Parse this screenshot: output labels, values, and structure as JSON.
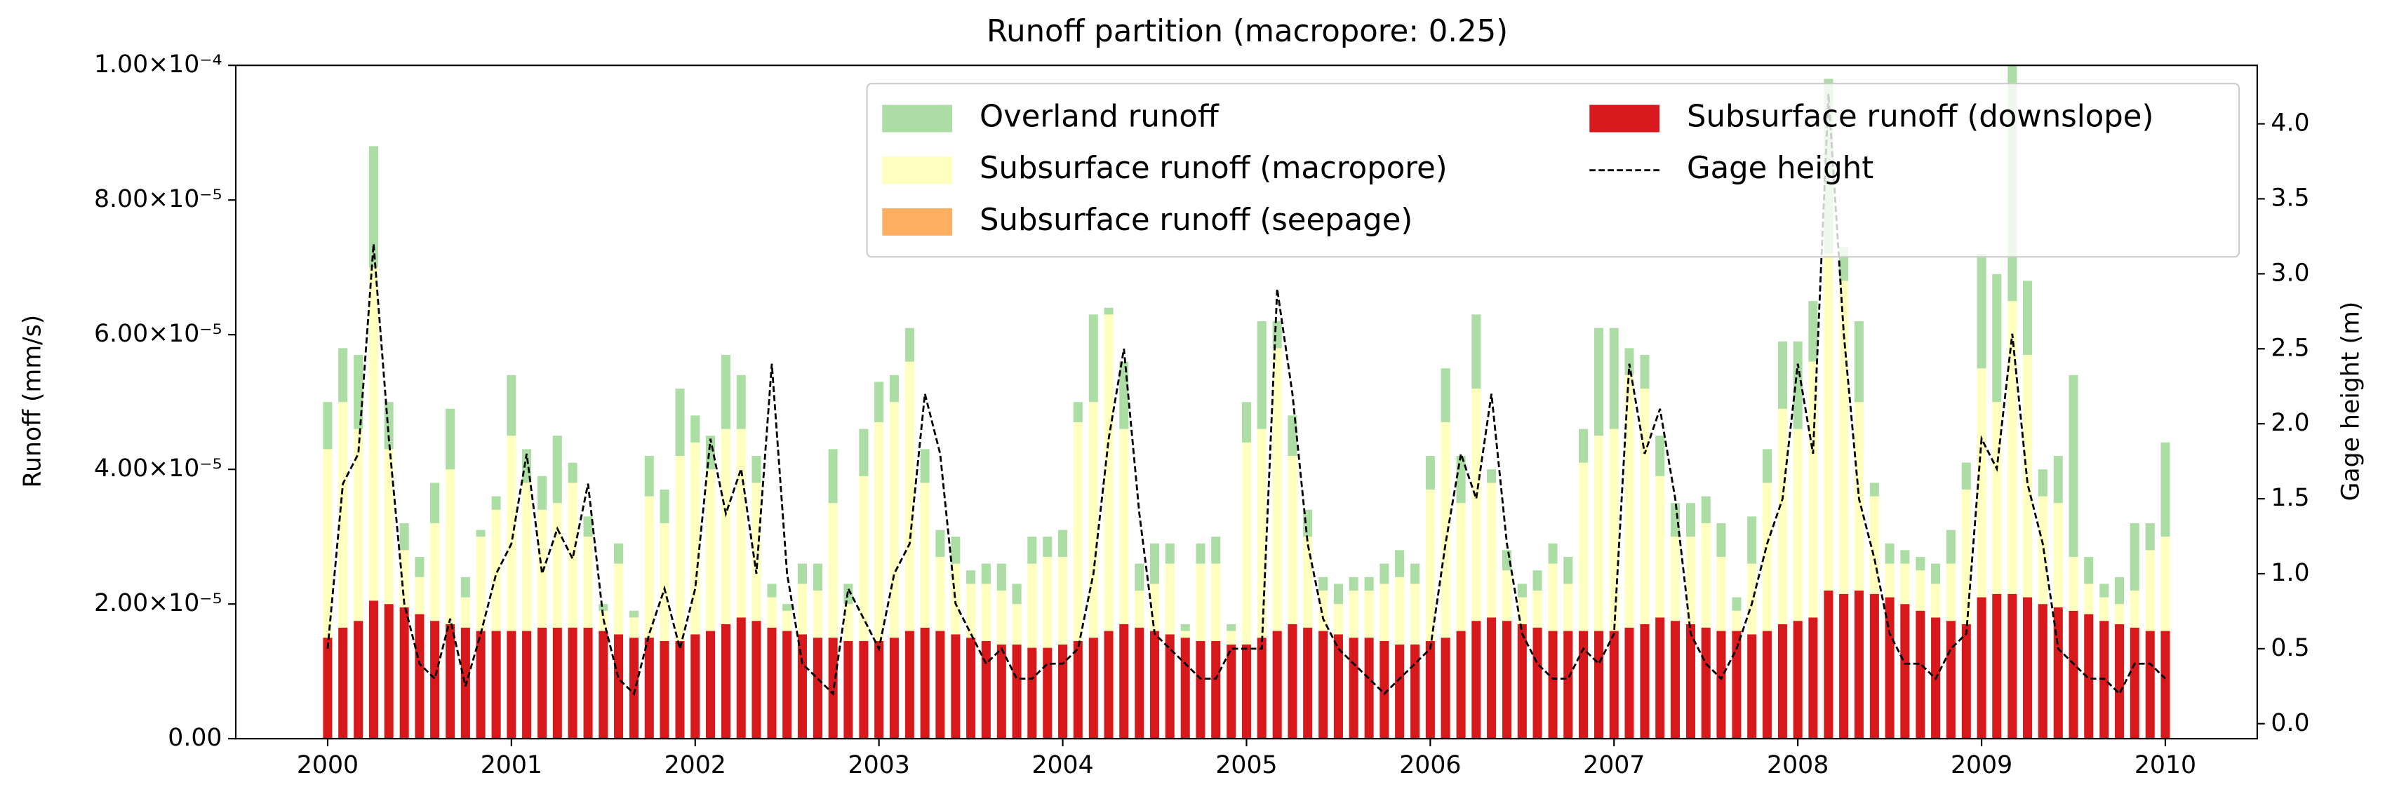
{
  "chart_data": {
    "type": "stacked_bar_line",
    "title": "Runoff partition (macropore: 0.25)",
    "y_label": "Runoff (mm/s)",
    "y2_label": "Gage height (m)",
    "legend": "upper right",
    "xlim": [
      1999.5,
      2010.5
    ],
    "xticks": [
      2000,
      2001,
      2002,
      2003,
      2004,
      2005,
      2006,
      2007,
      2008,
      2009,
      2010
    ],
    "ylim": [
      0,
      0.0001
    ],
    "yticks": [
      {
        "value": 0,
        "label": "0.00"
      },
      {
        "value": 2e-05,
        "label": "2.00×10⁻⁵"
      },
      {
        "value": 4e-05,
        "label": "4.00×10⁻⁵"
      },
      {
        "value": 6e-05,
        "label": "6.00×10⁻⁵"
      },
      {
        "value": 8e-05,
        "label": "8.00×10⁻⁵"
      },
      {
        "value": 0.0001,
        "label": "1.00×10⁻⁴"
      }
    ],
    "y2lim": [
      -0.1,
      4.39
    ],
    "y2ticks": [
      {
        "value": 0,
        "label": "0.0"
      },
      {
        "value": 0.5,
        "label": "0.5"
      },
      {
        "value": 1,
        "label": "1.0"
      },
      {
        "value": 1.5,
        "label": "1.5"
      },
      {
        "value": 2,
        "label": "2.0"
      },
      {
        "value": 2.5,
        "label": "2.5"
      },
      {
        "value": 3,
        "label": "3.0"
      },
      {
        "value": 3.5,
        "label": "3.5"
      },
      {
        "value": 4,
        "label": "4.0"
      }
    ],
    "x": [
      2000,
      2000.083,
      2000.167,
      2000.25,
      2000.333,
      2000.417,
      2000.5,
      2000.583,
      2000.667,
      2000.75,
      2000.833,
      2000.917,
      2001,
      2001.083,
      2001.167,
      2001.25,
      2001.333,
      2001.417,
      2001.5,
      2001.583,
      2001.667,
      2001.75,
      2001.833,
      2001.917,
      2002,
      2002.083,
      2002.167,
      2002.25,
      2002.333,
      2002.417,
      2002.5,
      2002.583,
      2002.667,
      2002.75,
      2002.833,
      2002.917,
      2003,
      2003.083,
      2003.167,
      2003.25,
      2003.333,
      2003.417,
      2003.5,
      2003.583,
      2003.667,
      2003.75,
      2003.833,
      2003.917,
      2004,
      2004.083,
      2004.167,
      2004.25,
      2004.333,
      2004.417,
      2004.5,
      2004.583,
      2004.667,
      2004.75,
      2004.833,
      2004.917,
      2005,
      2005.083,
      2005.167,
      2005.25,
      2005.333,
      2005.417,
      2005.5,
      2005.583,
      2005.667,
      2005.75,
      2005.833,
      2005.917,
      2006,
      2006.083,
      2006.167,
      2006.25,
      2006.333,
      2006.417,
      2006.5,
      2006.583,
      2006.667,
      2006.75,
      2006.833,
      2006.917,
      2007,
      2007.083,
      2007.167,
      2007.25,
      2007.333,
      2007.417,
      2007.5,
      2007.583,
      2007.667,
      2007.75,
      2007.833,
      2007.917,
      2008,
      2008.083,
      2008.167,
      2008.25,
      2008.333,
      2008.417,
      2008.5,
      2008.583,
      2008.667,
      2008.75,
      2008.833,
      2008.917,
      2009,
      2009.083,
      2009.167,
      2009.25,
      2009.333,
      2009.417,
      2009.5,
      2009.583,
      2009.667,
      2009.75,
      2009.833,
      2009.917,
      2010
    ],
    "series": [
      {
        "name": "Overland runoff",
        "color": "#abdda4",
        "kind": "bar",
        "values": [
          7e-06,
          8e-06,
          1.1e-05,
          1.8e-05,
          7e-06,
          4e-06,
          3e-06,
          6e-06,
          9e-06,
          3e-06,
          1e-06,
          2e-06,
          9e-06,
          5e-06,
          5e-06,
          1e-05,
          3e-06,
          3e-06,
          1e-06,
          3e-06,
          1e-06,
          6e-06,
          5e-06,
          1e-05,
          4e-06,
          5e-06,
          1.1e-05,
          8e-06,
          4e-06,
          2e-06,
          1e-06,
          3e-06,
          4e-06,
          8e-06,
          3e-06,
          7e-06,
          6e-06,
          4e-06,
          5e-06,
          5e-06,
          4e-06,
          4e-06,
          2e-06,
          3e-06,
          4e-06,
          3e-06,
          4e-06,
          3e-06,
          4e-06,
          3e-06,
          1.3e-05,
          1e-06,
          1e-05,
          4e-06,
          6e-06,
          3e-06,
          1e-06,
          3e-06,
          4e-06,
          1e-06,
          6e-06,
          1.6e-05,
          4e-06,
          6e-06,
          4e-06,
          2e-06,
          3e-06,
          2e-06,
          2e-06,
          3e-06,
          4e-06,
          3e-06,
          5e-06,
          8e-06,
          7e-06,
          1.1e-05,
          2e-06,
          3e-06,
          2e-06,
          3e-06,
          3e-06,
          4e-06,
          5e-06,
          1.6e-05,
          1.5e-05,
          4e-06,
          5e-06,
          6e-06,
          5e-06,
          5e-06,
          4e-06,
          5e-06,
          2e-06,
          7e-06,
          5e-06,
          1e-05,
          1.3e-05,
          9e-06,
          2.6e-05,
          5e-06,
          1.2e-05,
          2e-06,
          3e-06,
          2e-06,
          2e-06,
          3e-06,
          5e-06,
          4e-06,
          1.7e-05,
          1.9e-05,
          3.5e-05,
          1.1e-05,
          4e-06,
          7e-06,
          2.7e-05,
          4e-06,
          2e-06,
          4e-06,
          1e-05,
          4e-06,
          1.4e-05
        ]
      },
      {
        "name": "Subsurface runoff (macropore)",
        "color": "#ffffbf",
        "kind": "bar",
        "values": [
          2.8e-05,
          3.35e-05,
          2.85e-05,
          4.95e-05,
          2.3e-05,
          8.5e-06,
          5.5e-06,
          1.45e-05,
          2.3e-05,
          4.5e-06,
          1.4e-05,
          1.8e-05,
          2.9e-05,
          2.2e-05,
          1.75e-05,
          1.85e-05,
          2.15e-05,
          1.35e-05,
          3e-06,
          1.05e-05,
          3e-06,
          2.1e-05,
          1.75e-05,
          2.75e-05,
          2.85e-05,
          2.4e-05,
          2.9e-05,
          2.8e-05,
          2.05e-05,
          4.5e-06,
          3e-06,
          7.5e-06,
          7e-06,
          2e-05,
          5.5e-06,
          2.45e-05,
          3.25e-05,
          3.5e-05,
          4e-05,
          2.15e-05,
          1.1e-05,
          1.05e-05,
          8e-06,
          8.5e-06,
          8e-06,
          6e-06,
          1.25e-05,
          1.35e-05,
          1.3e-05,
          3.25e-05,
          3.5e-05,
          4.7e-05,
          2.9e-05,
          5.5e-06,
          7e-06,
          1.05e-05,
          1e-06,
          1.15e-05,
          1.15e-05,
          2e-06,
          3e-05,
          3.1e-05,
          4.2e-05,
          2.5e-05,
          1.35e-05,
          6e-06,
          4.5e-06,
          7e-06,
          7e-06,
          8.5e-06,
          1e-05,
          9e-06,
          2.25e-05,
          3.2e-05,
          1.9e-05,
          3.45e-05,
          2e-05,
          7.5e-06,
          4e-06,
          5.5e-06,
          1e-05,
          7e-06,
          2.5e-05,
          2.9e-05,
          3e-05,
          3.75e-05,
          3.5e-05,
          2.1e-05,
          1.25e-05,
          1.3e-05,
          1.55e-05,
          1.1e-05,
          3e-06,
          1.05e-05,
          2.2e-05,
          3.2e-05,
          2.85e-05,
          3.8e-05,
          5e-05,
          4.65e-05,
          2.8e-05,
          1.45e-05,
          5e-06,
          6e-06,
          6e-06,
          5e-06,
          8.5e-06,
          2e-05,
          3.4e-05,
          2.85e-05,
          4.35e-05,
          3.6e-05,
          1.6e-05,
          1.55e-05,
          8e-06,
          4.5e-06,
          3.5e-06,
          3e-06,
          5.5e-06,
          1.2e-05,
          1.4e-05
        ]
      },
      {
        "name": "Subsurface runoff (seepage)",
        "color": "#fdae61",
        "kind": "bar",
        "values": [
          0,
          0,
          0,
          0,
          0,
          0,
          0,
          0,
          0,
          0,
          0,
          0,
          0,
          0,
          0,
          0,
          0,
          0,
          0,
          0,
          0,
          0,
          0,
          0,
          0,
          0,
          0,
          0,
          0,
          0,
          0,
          0,
          0,
          0,
          0,
          0,
          0,
          0,
          0,
          0,
          0,
          0,
          0,
          0,
          0,
          0,
          0,
          0,
          0,
          0,
          0,
          0,
          0,
          0,
          0,
          0,
          0,
          0,
          0,
          0,
          0,
          0,
          0,
          0,
          0,
          0,
          0,
          0,
          0,
          0,
          0,
          0,
          0,
          0,
          0,
          0,
          0,
          0,
          0,
          0,
          0,
          0,
          0,
          0,
          0,
          0,
          0,
          0,
          0,
          0,
          0,
          0,
          0,
          0,
          0,
          0,
          0,
          0,
          0,
          0,
          0,
          0,
          0,
          0,
          0,
          0,
          0,
          0,
          0,
          0,
          0,
          0,
          0,
          0,
          0,
          0,
          0,
          0,
          0,
          0,
          0
        ]
      },
      {
        "name": "Subsurface runoff (downslope)",
        "color": "#d7191c",
        "kind": "bar",
        "values": [
          1.5e-05,
          1.65e-05,
          1.75e-05,
          2.05e-05,
          2e-05,
          1.95e-05,
          1.85e-05,
          1.75e-05,
          1.7e-05,
          1.65e-05,
          1.6e-05,
          1.6e-05,
          1.6e-05,
          1.6e-05,
          1.65e-05,
          1.65e-05,
          1.65e-05,
          1.65e-05,
          1.6e-05,
          1.55e-05,
          1.5e-05,
          1.5e-05,
          1.45e-05,
          1.45e-05,
          1.55e-05,
          1.6e-05,
          1.7e-05,
          1.8e-05,
          1.75e-05,
          1.65e-05,
          1.6e-05,
          1.55e-05,
          1.5e-05,
          1.5e-05,
          1.45e-05,
          1.45e-05,
          1.45e-05,
          1.5e-05,
          1.6e-05,
          1.65e-05,
          1.6e-05,
          1.55e-05,
          1.5e-05,
          1.45e-05,
          1.4e-05,
          1.4e-05,
          1.35e-05,
          1.35e-05,
          1.4e-05,
          1.45e-05,
          1.5e-05,
          1.6e-05,
          1.7e-05,
          1.65e-05,
          1.6e-05,
          1.55e-05,
          1.5e-05,
          1.45e-05,
          1.45e-05,
          1.4e-05,
          1.4e-05,
          1.5e-05,
          1.6e-05,
          1.7e-05,
          1.65e-05,
          1.6e-05,
          1.55e-05,
          1.5e-05,
          1.5e-05,
          1.45e-05,
          1.4e-05,
          1.4e-05,
          1.45e-05,
          1.5e-05,
          1.6e-05,
          1.75e-05,
          1.8e-05,
          1.75e-05,
          1.7e-05,
          1.65e-05,
          1.6e-05,
          1.6e-05,
          1.6e-05,
          1.6e-05,
          1.6e-05,
          1.65e-05,
          1.7e-05,
          1.8e-05,
          1.75e-05,
          1.7e-05,
          1.65e-05,
          1.6e-05,
          1.6e-05,
          1.55e-05,
          1.6e-05,
          1.7e-05,
          1.75e-05,
          1.8e-05,
          2.2e-05,
          2.15e-05,
          2.2e-05,
          2.15e-05,
          2.1e-05,
          2e-05,
          1.9e-05,
          1.8e-05,
          1.75e-05,
          1.7e-05,
          2.1e-05,
          2.15e-05,
          2.15e-05,
          2.1e-05,
          2e-05,
          1.95e-05,
          1.9e-05,
          1.85e-05,
          1.75e-05,
          1.7e-05,
          1.65e-05,
          1.6e-05,
          1.6e-05
        ]
      },
      {
        "name": "Gage height",
        "color": "#000000",
        "kind": "line",
        "axis": "y2",
        "values": [
          0.5,
          1.6,
          1.8,
          3.2,
          1.9,
          0.8,
          0.4,
          0.3,
          0.7,
          0.25,
          0.6,
          1.0,
          1.2,
          1.8,
          1.0,
          1.3,
          1.1,
          1.6,
          0.7,
          0.3,
          0.2,
          0.6,
          0.9,
          0.5,
          0.9,
          1.9,
          1.4,
          1.7,
          1.0,
          2.4,
          1.0,
          0.4,
          0.3,
          0.2,
          0.9,
          0.7,
          0.5,
          1.0,
          1.2,
          2.2,
          1.8,
          0.8,
          0.6,
          0.4,
          0.5,
          0.3,
          0.3,
          0.4,
          0.4,
          0.5,
          1.0,
          1.9,
          2.5,
          1.4,
          0.6,
          0.5,
          0.4,
          0.3,
          0.3,
          0.5,
          0.5,
          0.5,
          2.9,
          2.2,
          1.2,
          0.7,
          0.5,
          0.4,
          0.3,
          0.2,
          0.3,
          0.4,
          0.5,
          1.2,
          1.8,
          1.5,
          2.2,
          1.2,
          0.6,
          0.4,
          0.3,
          0.3,
          0.5,
          0.4,
          0.6,
          2.4,
          1.8,
          2.1,
          1.5,
          0.6,
          0.4,
          0.3,
          0.5,
          0.8,
          1.2,
          1.5,
          2.4,
          1.8,
          4.2,
          2.6,
          1.5,
          1.1,
          0.6,
          0.4,
          0.4,
          0.3,
          0.5,
          0.6,
          1.9,
          1.7,
          2.6,
          1.6,
          1.2,
          0.5,
          0.4,
          0.3,
          0.3,
          0.2,
          0.4,
          0.4,
          0.3
        ]
      }
    ]
  }
}
